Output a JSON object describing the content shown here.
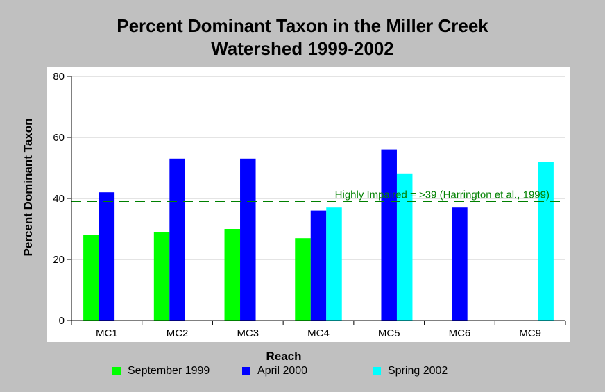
{
  "chart_data": {
    "type": "bar",
    "title_line1": "Percent Dominant Taxon in the Miller Creek",
    "title_line2": "Watershed 1999-2002",
    "xlabel": "Reach",
    "ylabel": "Percent Dominant Taxon",
    "categories": [
      "MC1",
      "MC2",
      "MC3",
      "MC4",
      "MC5",
      "MC6",
      "MC9"
    ],
    "series": [
      {
        "name": "September 1999",
        "color": "#00ff00",
        "values": [
          28,
          29,
          30,
          27,
          null,
          null,
          null
        ]
      },
      {
        "name": "April 2000",
        "color": "#0000ff",
        "values": [
          42,
          53,
          53,
          36,
          56,
          37,
          null
        ]
      },
      {
        "name": "Spring 2002",
        "color": "#00ffff",
        "values": [
          null,
          null,
          null,
          37,
          48,
          null,
          52
        ]
      }
    ],
    "ylim": [
      0,
      80
    ],
    "yticks": [
      0,
      20,
      40,
      60,
      80
    ],
    "grid": true,
    "legend_position": "bottom",
    "threshold": {
      "value": 39,
      "label": "Highly Impaired = >39 (Harrington et al., 1999)",
      "color": "#008000"
    }
  }
}
